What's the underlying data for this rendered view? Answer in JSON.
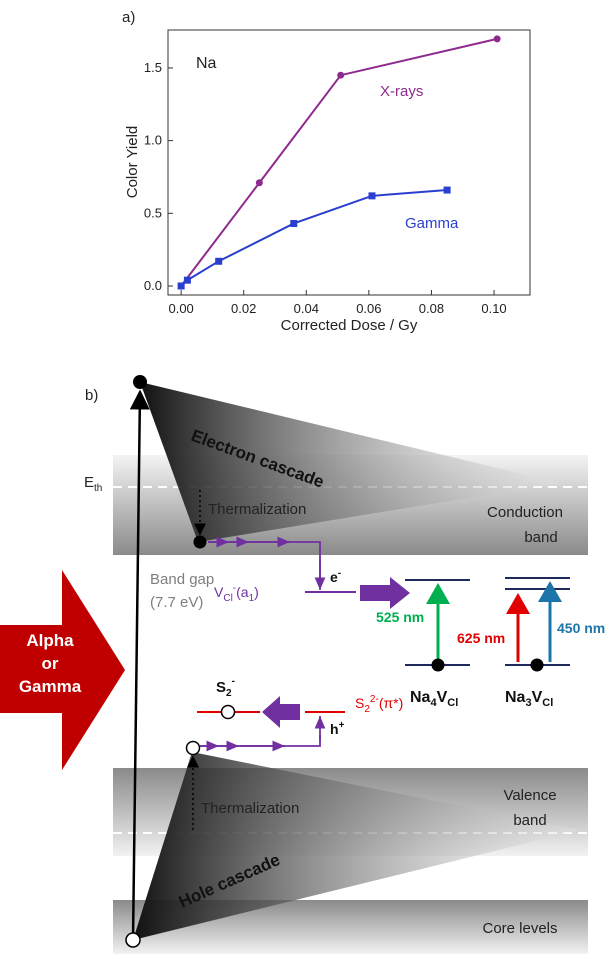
{
  "chart_data": {
    "type": "line",
    "panel_label": "a)",
    "annotation": "Na",
    "x_label": "Corrected Dose / Gy",
    "y_label": "Color Yield",
    "xlim": [
      -0.0042,
      0.1115
    ],
    "ylim": [
      -0.062,
      1.761
    ],
    "xticks": [
      {
        "value": 0,
        "label": "0.00"
      },
      {
        "value": 0.02,
        "label": "0.02"
      },
      {
        "value": 0.04,
        "label": "0.04"
      },
      {
        "value": 0.06,
        "label": "0.06"
      },
      {
        "value": 0.08,
        "label": "0.08"
      },
      {
        "value": 0.1,
        "label": "0.10"
      }
    ],
    "yticks": [
      {
        "value": 0,
        "label": "0.0"
      },
      {
        "value": 0.5,
        "label": "0.5"
      },
      {
        "value": 1,
        "label": "1.0"
      },
      {
        "value": 1.5,
        "label": "1.5"
      }
    ],
    "series": [
      {
        "name": "X-rays",
        "color": "#8e2a8e",
        "marker": "circle",
        "x": [
          0,
          0.025,
          0.051,
          0.101
        ],
        "values": [
          0,
          0.71,
          1.45,
          1.7
        ]
      },
      {
        "name": "Gamma",
        "color": "#2a3fcf",
        "marker": "square",
        "x": [
          0,
          0.002,
          0.012,
          0.036,
          0.061,
          0.085
        ],
        "values": [
          0,
          0.04,
          0.17,
          0.43,
          0.62,
          0.66
        ]
      }
    ]
  },
  "diagram": {
    "panel_label": "b)",
    "e_th": [
      "E",
      "th"
    ],
    "electron_cascade": "Electron cascade",
    "hole_cascade": "Hole cascade",
    "thermalization_top": "Thermalization",
    "thermalization_bottom": "Thermalization",
    "conduction_band": [
      "Conduction",
      "band"
    ],
    "valence_band": [
      "Valence",
      "band"
    ],
    "core_levels": "Core levels",
    "band_gap": [
      "Band gap",
      "(7.7 eV)"
    ],
    "electron": [
      "e",
      "-"
    ],
    "hole": [
      "h",
      "+"
    ],
    "vcl_level": [
      "V",
      "Cl",
      "-",
      "(a",
      "1",
      ")"
    ],
    "s2_minus": [
      "S",
      "2",
      "-"
    ],
    "s2_2minus": [
      "S",
      "2",
      "2-",
      "(π*)"
    ],
    "excitation": [
      "Alpha",
      "or",
      "Gamma"
    ],
    "na4vcl": {
      "label": [
        "Na",
        "4",
        "V",
        "Cl"
      ],
      "transition": "525 nm"
    },
    "na3vcl": {
      "label": [
        "Na",
        "3",
        "V",
        "Cl"
      ],
      "transitions": [
        "625 nm",
        "450 nm"
      ]
    }
  }
}
